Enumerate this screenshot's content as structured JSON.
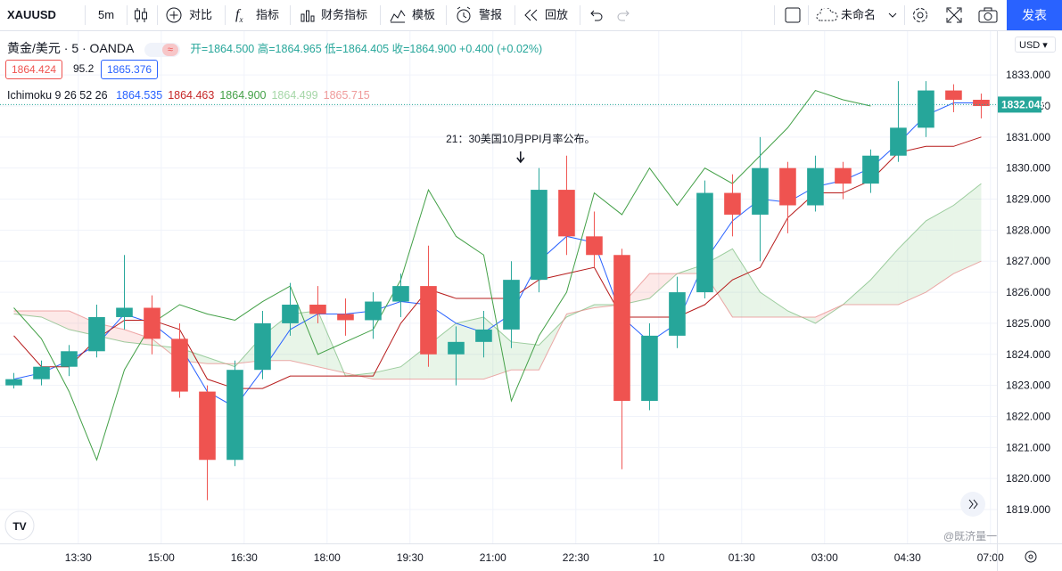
{
  "toolbar": {
    "symbol": "XAUUSD",
    "interval": "5m",
    "compare": "对比",
    "indicators": "指标",
    "financials": "财务指标",
    "templates": "模板",
    "alert": "警报",
    "replay": "回放",
    "layout_name": "未命名",
    "publish": "发表"
  },
  "legend": {
    "instrument": "黄金/美元 · 5 · OANDA",
    "open": "开=1864.500",
    "high": "高=1864.965",
    "low": "低=1864.405",
    "close": "收=1864.900",
    "change": "+0.400 (+0.02%)",
    "bid": "1864.424",
    "spread": "95.2",
    "ask": "1865.376",
    "indicator_name": "Ichimoku 9 26 52 26",
    "indicator_values": [
      "1864.535",
      "1864.463",
      "1864.900",
      "1864.499",
      "1865.715"
    ],
    "indicator_colors": [
      "#2962ff",
      "#c62828",
      "#43a047",
      "#a5d6a7",
      "#ef9a9a"
    ]
  },
  "currency": "USD",
  "watermark": "@既济量一",
  "chart_data": {
    "type": "candlestick",
    "x": [
      740,
      770,
      800,
      830,
      860,
      890,
      920,
      950,
      980,
      1010,
      1040,
      1070,
      1100,
      1130,
      1160,
      1190,
      1220,
      1250,
      1280,
      1310,
      1340,
      1370,
      1400,
      1430,
      1460,
      1490,
      1520,
      1550,
      1580,
      1610,
      1640,
      1670,
      1700,
      1730,
      1760,
      1790
    ],
    "open": [
      1823.0,
      1823.2,
      1823.6,
      1824.1,
      1825.2,
      1825.5,
      1824.5,
      1822.8,
      1820.6,
      1823.5,
      1825.0,
      1825.6,
      1825.3,
      1825.1,
      1825.7,
      1826.2,
      1824.0,
      1824.4,
      1824.8,
      1826.4,
      1829.3,
      1827.8,
      1827.2,
      1822.5,
      1824.6,
      1826.0,
      1829.2,
      1828.5,
      1830.0,
      1828.8,
      1830.0,
      1829.5,
      1830.4,
      1831.3,
      1832.5,
      1832.2
    ],
    "high": [
      1823.4,
      1823.8,
      1824.3,
      1825.6,
      1827.2,
      1825.9,
      1825.0,
      1823.0,
      1823.8,
      1825.4,
      1826.3,
      1826.2,
      1825.8,
      1826.0,
      1826.6,
      1827.5,
      1824.9,
      1825.4,
      1827.0,
      1830.0,
      1830.4,
      1828.6,
      1827.4,
      1825.0,
      1826.5,
      1829.6,
      1829.8,
      1831.0,
      1830.2,
      1830.4,
      1830.2,
      1830.6,
      1832.8,
      1832.8,
      1832.7,
      1832.4
    ],
    "low": [
      1822.9,
      1823.0,
      1823.3,
      1823.9,
      1824.8,
      1824.0,
      1822.6,
      1819.3,
      1820.4,
      1823.2,
      1824.6,
      1825.0,
      1824.6,
      1824.5,
      1825.2,
      1823.6,
      1823.0,
      1823.9,
      1824.2,
      1826.0,
      1827.2,
      1826.8,
      1820.3,
      1822.2,
      1824.2,
      1825.8,
      1827.8,
      1827.0,
      1827.9,
      1828.6,
      1829.0,
      1829.2,
      1830.2,
      1831.0,
      1831.8,
      1831.6
    ],
    "close": [
      1823.2,
      1823.6,
      1824.1,
      1825.2,
      1825.5,
      1824.5,
      1822.8,
      1820.6,
      1823.5,
      1825.0,
      1825.6,
      1825.3,
      1825.1,
      1825.7,
      1826.2,
      1824.0,
      1824.4,
      1824.8,
      1826.4,
      1829.3,
      1827.8,
      1827.2,
      1822.5,
      1824.6,
      1826.0,
      1829.2,
      1828.5,
      1830.0,
      1828.8,
      1830.0,
      1829.5,
      1830.4,
      1831.3,
      1832.5,
      1832.2,
      1832.0
    ],
    "up_color": "#26a69a",
    "down_color": "#ef5350",
    "lines": [
      {
        "color": "#2962ff",
        "values": [
          1823.2,
          1823.4,
          1823.8,
          1824.3,
          1825.3,
          1825.0,
          1824.3,
          1822.8,
          1822.3,
          1823.5,
          1824.8,
          1825.3,
          1825.3,
          1825.4,
          1825.7,
          1825.6,
          1825.0,
          1824.7,
          1825.3,
          1827.0,
          1827.8,
          1827.6,
          1825.2,
          1824.4,
          1825.0,
          1827.0,
          1828.3,
          1829.0,
          1828.9,
          1829.4,
          1829.6,
          1830.0,
          1830.8,
          1831.7,
          1832.1,
          1832.1
        ]
      },
      {
        "color": "#b71c1c",
        "values": [
          1824.6,
          1823.6,
          1823.6,
          1824.5,
          1825.1,
          1825.1,
          1824.8,
          1823.2,
          1822.9,
          1822.9,
          1823.3,
          1823.3,
          1823.3,
          1823.3,
          1825.0,
          1826.1,
          1825.8,
          1825.8,
          1825.8,
          1826.4,
          1826.6,
          1826.8,
          1825.2,
          1825.2,
          1825.2,
          1825.6,
          1826.4,
          1826.8,
          1828.4,
          1829.2,
          1829.2,
          1829.6,
          1830.5,
          1830.7,
          1830.7,
          1831.0
        ]
      },
      {
        "color": "#43a047",
        "values": [
          1825.5,
          1824.5,
          1822.8,
          1820.6,
          1823.5,
          1825.0,
          1825.6,
          1825.3,
          1825.1,
          1825.7,
          1826.2,
          1824.0,
          1824.4,
          1824.8,
          1826.4,
          1829.3,
          1827.8,
          1827.2,
          1822.5,
          1824.6,
          1826.0,
          1829.2,
          1828.5,
          1830.0,
          1828.8,
          1830.0,
          1829.5,
          1830.4,
          1831.3,
          1832.5,
          1832.2,
          1832.0,
          null,
          null,
          null,
          null
        ]
      }
    ],
    "cloud": {
      "span_a": [
        1825.3,
        1825.2,
        1824.8,
        1824.6,
        1824.4,
        1824.3,
        1824.2,
        1823.9,
        1823.6,
        1824.6,
        1825.3,
        1825.4,
        1823.3,
        1823.4,
        1823.6,
        1824.3,
        1825.0,
        1825.2,
        1824.4,
        1824.3,
        1825.2,
        1825.6,
        1825.6,
        1825.8,
        1826.6,
        1826.9,
        1827.4,
        1826.0,
        1825.4,
        1825.0,
        1825.6,
        1826.4,
        1827.4,
        1828.3,
        1828.8,
        1829.5
      ],
      "span_b": [
        1825.4,
        1825.4,
        1825.4,
        1825.0,
        1824.8,
        1824.5,
        1823.8,
        1823.7,
        1823.7,
        1823.8,
        1823.8,
        1823.6,
        1823.4,
        1823.2,
        1823.2,
        1823.2,
        1823.2,
        1823.2,
        1823.5,
        1823.5,
        1825.3,
        1825.5,
        1825.6,
        1826.6,
        1826.6,
        1826.6,
        1825.2,
        1825.2,
        1825.2,
        1825.2,
        1825.6,
        1825.6,
        1825.6,
        1826.0,
        1826.6,
        1827.0
      ],
      "a_color": "#43a047",
      "b_color": "#e57373",
      "up_fill": "rgba(76,175,80,0.13)",
      "down_fill": "rgba(239,83,80,0.13)"
    },
    "xlim": [
      725,
      1807
    ],
    "xticks": [
      {
        "value": 810,
        "label": "13:30"
      },
      {
        "value": 900,
        "label": "15:00"
      },
      {
        "value": 990,
        "label": "16:30"
      },
      {
        "value": 1080,
        "label": "18:00"
      },
      {
        "value": 1170,
        "label": "19:30"
      },
      {
        "value": 1260,
        "label": "21:00"
      },
      {
        "value": 1350,
        "label": "22:30"
      },
      {
        "value": 1440,
        "label": "10"
      },
      {
        "value": 1530,
        "label": "01:30"
      },
      {
        "value": 1620,
        "label": "03:00"
      },
      {
        "value": 1710,
        "label": "04:30"
      },
      {
        "value": 1800,
        "label": "07:00"
      }
    ],
    "ylim": [
      1817.91,
      1834.41
    ],
    "yticks": [
      {
        "value": 1819,
        "label": "1819.000"
      },
      {
        "value": 1820,
        "label": "1820.000"
      },
      {
        "value": 1821,
        "label": "1821.000"
      },
      {
        "value": 1822,
        "label": "1822.000"
      },
      {
        "value": 1823,
        "label": "1823.000"
      },
      {
        "value": 1824,
        "label": "1824.000"
      },
      {
        "value": 1825,
        "label": "1825.000"
      },
      {
        "value": 1826,
        "label": "1826.000"
      },
      {
        "value": 1827,
        "label": "1827.000"
      },
      {
        "value": 1828,
        "label": "1828.000"
      },
      {
        "value": 1829,
        "label": "1829.000"
      },
      {
        "value": 1830,
        "label": "1830.000"
      },
      {
        "value": 1831,
        "label": "1831.000"
      },
      {
        "value": 1832,
        "label": "1832.000"
      },
      {
        "value": 1833,
        "label": "1833.000"
      }
    ],
    "grid": true,
    "last_price": {
      "value": 1832.045,
      "label": "1832.045",
      "color": "#26a69a"
    },
    "annotation": {
      "text": "21：30美国10月PPI月率公布。",
      "x": 1290
    }
  }
}
